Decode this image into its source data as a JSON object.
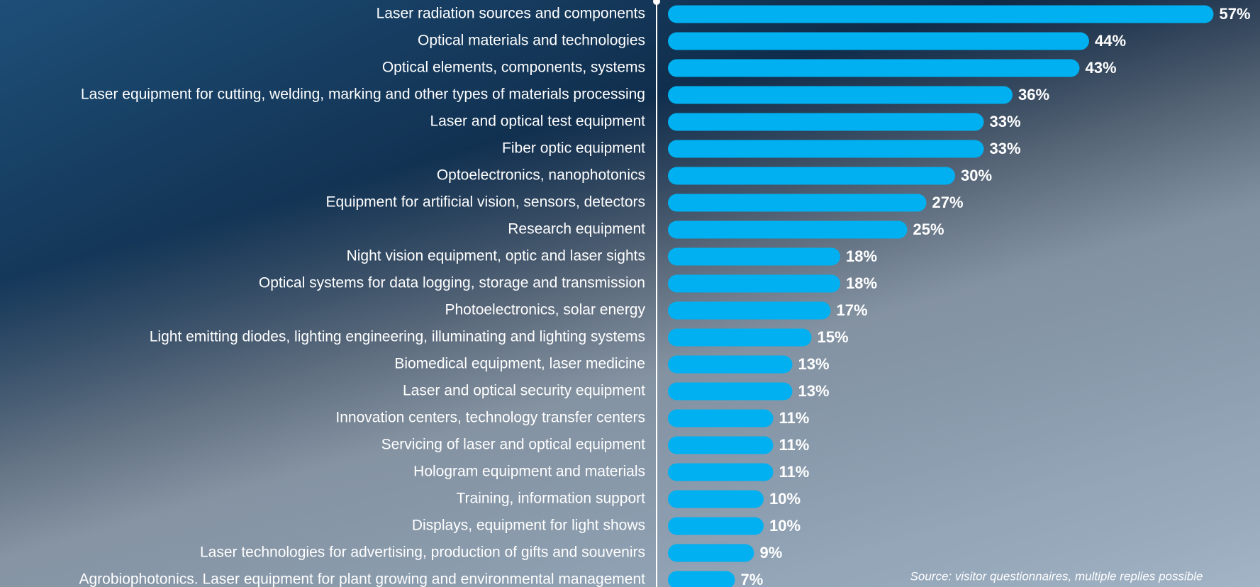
{
  "chart_data": {
    "type": "bar",
    "orientation": "horizontal",
    "color": "#00b0f0",
    "categories": [
      "Laser radiation sources and components",
      "Optical materials and technologies",
      "Optical elements, components, systems",
      "Laser equipment for cutting, welding, marking and other types of materials processing",
      "Laser and optical test equipment",
      "Fiber optic equipment",
      "Optoelectronics, nanophotonics",
      "Equipment for artificial vision, sensors, detectors",
      "Research equipment",
      "Night vision equipment, optic and laser sights",
      "Optical systems for data logging, storage and transmission",
      "Photoelectronics, solar energy",
      "Light emitting diodes, lighting engineering, illuminating and lighting systems",
      "Biomedical equipment, laser medicine",
      "Laser and optical security equipment",
      "Innovation centers, technology transfer centers",
      "Servicing of laser and optical equipment",
      "Hologram equipment and materials",
      "Training, information support",
      "Displays, equipment for light shows",
      "Laser technologies for advertising, production of gifts and souvenirs",
      "Agrobiophotonics. Laser equipment for plant growing and environmental management"
    ],
    "values": [
      57,
      44,
      43,
      36,
      33,
      33,
      30,
      27,
      25,
      18,
      18,
      17,
      15,
      13,
      13,
      11,
      11,
      11,
      10,
      10,
      9,
      7
    ],
    "value_labels": [
      "57%",
      "44%",
      "43%",
      "36%",
      "33%",
      "33%",
      "30%",
      "27%",
      "25%",
      "18%",
      "18%",
      "17%",
      "15%",
      "13%",
      "13%",
      "11%",
      "11%",
      "11%",
      "10%",
      "10%",
      "9%",
      "7%"
    ],
    "annotation": "Source: visitor questionnaires, multiple replies possible"
  }
}
